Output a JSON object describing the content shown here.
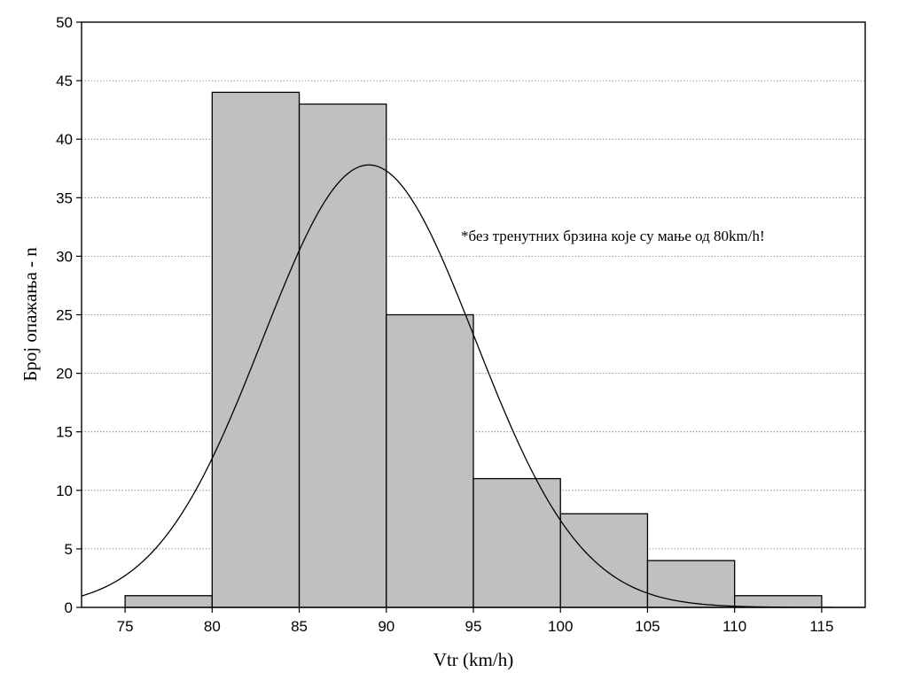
{
  "chart_data": {
    "type": "bar",
    "subtype": "histogram",
    "xlabel": "Vtr (km/h)",
    "ylabel": "Број опажања - n",
    "annotation": "*без тренутних брзина које су мање од 80km/h!",
    "xlim": [
      72.5,
      117.5
    ],
    "ylim": [
      0,
      50
    ],
    "x_ticks": [
      75,
      80,
      85,
      90,
      95,
      100,
      105,
      110,
      115
    ],
    "y_ticks": [
      0,
      5,
      10,
      15,
      20,
      25,
      30,
      35,
      40,
      45,
      50
    ],
    "grid": "horizontal dotted",
    "bins": [
      {
        "from": 75,
        "to": 80,
        "value": 1
      },
      {
        "from": 80,
        "to": 85,
        "value": 44
      },
      {
        "from": 85,
        "to": 90,
        "value": 43
      },
      {
        "from": 90,
        "to": 95,
        "value": 25
      },
      {
        "from": 95,
        "to": 100,
        "value": 11
      },
      {
        "from": 100,
        "to": 105,
        "value": 8
      },
      {
        "from": 105,
        "to": 110,
        "value": 4
      },
      {
        "from": 110,
        "to": 115,
        "value": 1
      }
    ],
    "fitted_curve": {
      "type": "normal",
      "mean": 89,
      "std": 6.1,
      "peak": 37.8
    },
    "colors": {
      "bar_fill": "#c0c0c0",
      "bar_stroke": "#000000",
      "curve": "#000000",
      "grid": "#7a7a7a"
    }
  }
}
